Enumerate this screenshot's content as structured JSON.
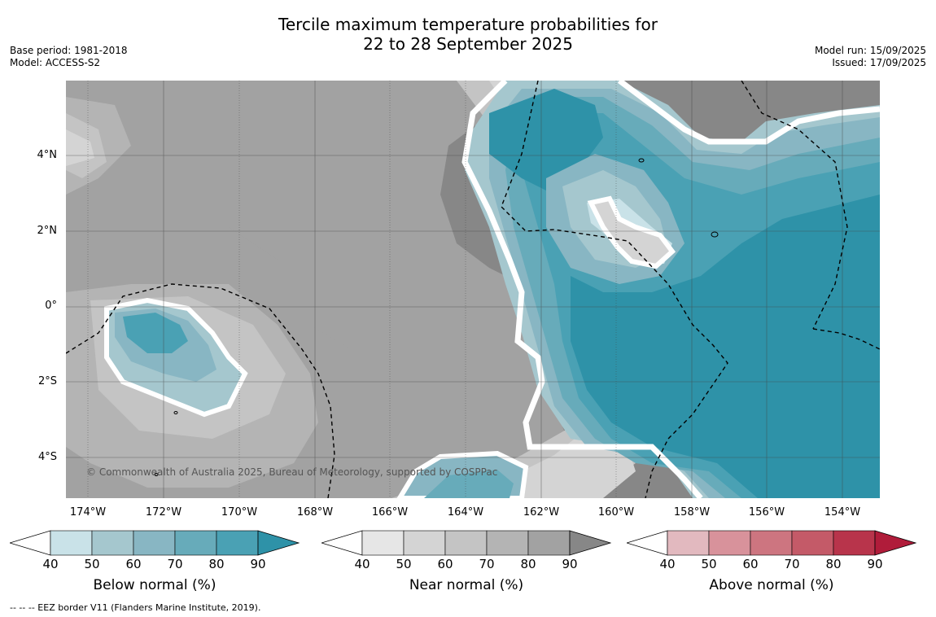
{
  "title_line1": "Tercile maximum temperature probabilities for",
  "title_line2": "22 to 28 September 2025",
  "meta_left": [
    "Base period: 1981-2018",
    "Model: ACCESS-S2"
  ],
  "meta_right": [
    "Model run: 15/09/2025",
    "Issued: 17/09/2025"
  ],
  "lat_labels": [
    "4°N",
    "2°N",
    "0°",
    "2°S",
    "4°S"
  ],
  "lon_labels": [
    "174°W",
    "172°W",
    "170°W",
    "168°W",
    "166°W",
    "164°W",
    "162°W",
    "160°W",
    "158°W",
    "156°W",
    "154°W"
  ],
  "copyright": "© Commonwealth of Australia 2025, Bureau of Meteorology, supported by COSPPac",
  "colorbars": [
    {
      "label": "Below normal (%)",
      "ticks": [
        "40",
        "50",
        "60",
        "70",
        "80",
        "90"
      ],
      "colors": [
        "#ffffff",
        "#c9e2e8",
        "#a5c7ce",
        "#88b6c3",
        "#67abba",
        "#4aa1b4",
        "#2e92a8"
      ]
    },
    {
      "label": "Near normal (%)",
      "ticks": [
        "40",
        "50",
        "60",
        "70",
        "80",
        "90"
      ],
      "colors": [
        "#ffffff",
        "#e6e6e6",
        "#d4d4d4",
        "#c4c4c4",
        "#b4b4b4",
        "#a2a2a2",
        "#878787"
      ]
    },
    {
      "label": "Above normal (%)",
      "ticks": [
        "40",
        "50",
        "60",
        "70",
        "80",
        "90"
      ],
      "colors": [
        "#ffffff",
        "#e2b9bf",
        "#d8929b",
        "#cd7580",
        "#c45a68",
        "#b8344b",
        "#b01c3a"
      ]
    }
  ],
  "footnote": "--  --  -- EEZ border V11 (Flanders Marine Institute, 2019)."
}
